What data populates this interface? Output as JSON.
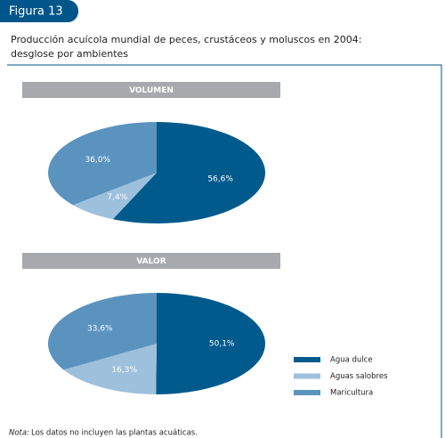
{
  "header": {
    "label": "Figura 13"
  },
  "title": {
    "line1": "Producción acuícola mundial de peces, crustáceos y moluscos en 2004:",
    "line2": "desglose por ambientes"
  },
  "chart_data": [
    {
      "type": "pie",
      "title": "VOLUMEN",
      "categories": [
        "Agua dulce",
        "Aguas salobres",
        "Maricultura"
      ],
      "values": [
        56.6,
        7.4,
        36.0
      ],
      "value_labels": [
        "56,6%",
        "7,4%",
        "36,0%"
      ],
      "colors": [
        "#005a8c",
        "#9dc0dc",
        "#5b93bf"
      ]
    },
    {
      "type": "pie",
      "title": "VALOR",
      "categories": [
        "Agua dulce",
        "Aguas salobres",
        "Maricultura"
      ],
      "values": [
        50.1,
        16.3,
        33.6
      ],
      "value_labels": [
        "50,1%",
        "16,3%",
        "33,6%"
      ],
      "colors": [
        "#005a8c",
        "#9dc0dc",
        "#5b93bf"
      ]
    }
  ],
  "note": {
    "label": "Nota:",
    "text": "Los datos no incluyen las plantas acuáticas."
  }
}
